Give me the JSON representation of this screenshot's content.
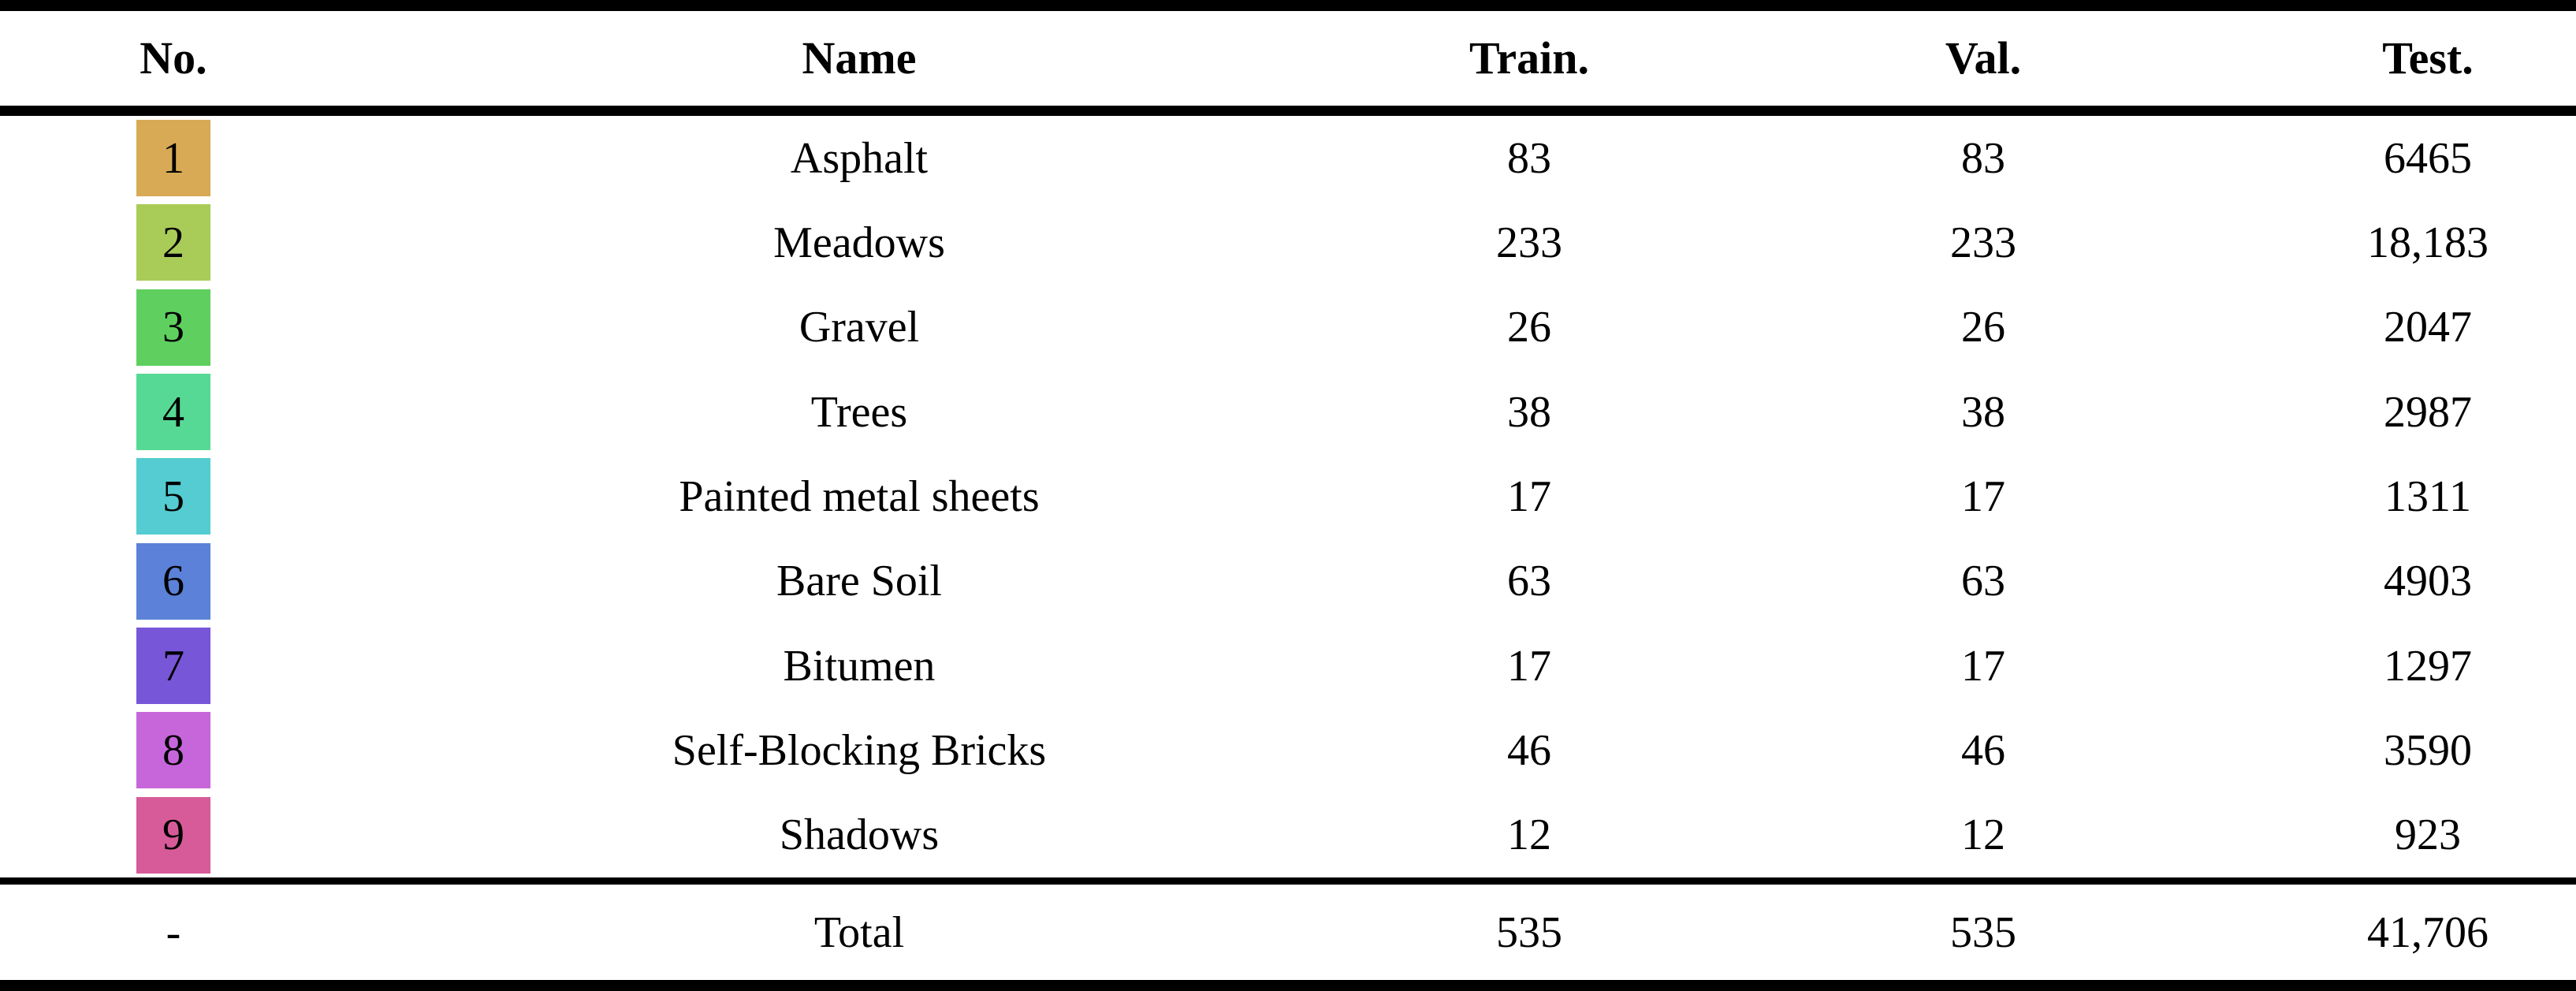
{
  "table": {
    "headers": [
      "No.",
      "Name",
      "Train.",
      "Val.",
      "Test."
    ],
    "rows": [
      {
        "no": "1",
        "color": "#d8aa55",
        "name": "Asphalt",
        "train": "83",
        "val": "83",
        "test": "6465"
      },
      {
        "no": "2",
        "color": "#a9cc59",
        "name": "Meadows",
        "train": "233",
        "val": "233",
        "test": "18,183"
      },
      {
        "no": "3",
        "color": "#5fd05f",
        "name": "Gravel",
        "train": "26",
        "val": "26",
        "test": "2047"
      },
      {
        "no": "4",
        "color": "#57d996",
        "name": "Trees",
        "train": "38",
        "val": "38",
        "test": "2987"
      },
      {
        "no": "5",
        "color": "#54ccd1",
        "name": "Painted metal sheets",
        "train": "17",
        "val": "17",
        "test": "1311"
      },
      {
        "no": "6",
        "color": "#5b82d8",
        "name": "Bare Soil",
        "train": "63",
        "val": "63",
        "test": "4903"
      },
      {
        "no": "7",
        "color": "#7757d8",
        "name": "Bitumen",
        "train": "17",
        "val": "17",
        "test": "1297"
      },
      {
        "no": "8",
        "color": "#c766da",
        "name": "Self-Blocking Bricks",
        "train": "46",
        "val": "46",
        "test": "3590"
      },
      {
        "no": "9",
        "color": "#d75b99",
        "name": "Shadows",
        "train": "12",
        "val": "12",
        "test": "923"
      }
    ],
    "total": {
      "no": "-",
      "name": "Total",
      "train": "535",
      "val": "535",
      "test": "41,706"
    }
  }
}
